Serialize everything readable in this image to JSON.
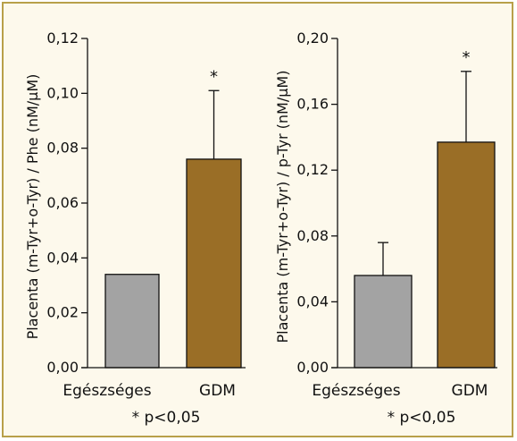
{
  "colors": {
    "background": "#fdf9ec",
    "border": "#b8a04a",
    "bar_control": "#a3a3a3",
    "bar_gdm": "#9a6e26",
    "axis": "#111111"
  },
  "chart_data": [
    {
      "type": "bar",
      "categories": [
        "Egészséges",
        "GDM"
      ],
      "values": [
        0.034,
        0.076
      ],
      "errors": [
        null,
        0.025
      ],
      "significance": [
        "",
        "*"
      ],
      "ylabel": "Placenta (m-Tyr+o-Tyr) / Phe (nM/µM)",
      "ylim": [
        0,
        0.12
      ],
      "yticks": [
        "0,00",
        "0,02",
        "0,04",
        "0,06",
        "0,08",
        "0,10",
        "0,12"
      ],
      "footnote": "* p<0,05"
    },
    {
      "type": "bar",
      "categories": [
        "Egészséges",
        "GDM"
      ],
      "values": [
        0.056,
        0.137
      ],
      "errors": [
        0.02,
        0.043
      ],
      "significance": [
        "",
        "*"
      ],
      "ylabel": "Placenta (m-Tyr+o-Tyr) / p-Tyr (nM/µM)",
      "ylim": [
        0,
        0.2
      ],
      "yticks": [
        "0,00",
        "0,04",
        "0,08",
        "0,12",
        "0,16",
        "0,20"
      ],
      "footnote": "* p<0,05"
    }
  ]
}
